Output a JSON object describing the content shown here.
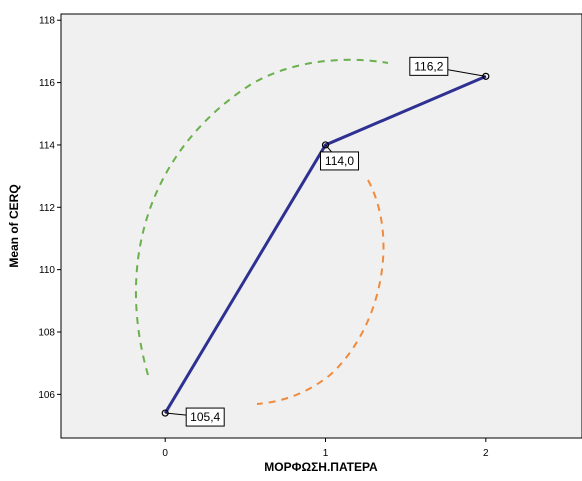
{
  "chart_data": {
    "type": "line",
    "title": "",
    "xlabel": "ΜΟΡΦΩΣΗ.ΠΑΤΕΡΑ",
    "ylabel": "Mean of CERQ",
    "x": [
      0,
      1,
      2
    ],
    "x_tick_labels": [
      "0",
      "1",
      "2"
    ],
    "xlim": [
      -0.65,
      2.6
    ],
    "ylim": [
      104.6,
      118.2
    ],
    "y_ticks": [
      106,
      108,
      110,
      112,
      114,
      116,
      118
    ],
    "series": [
      {
        "values": [
          105.4,
          114.0,
          116.2
        ],
        "color": "#2e3192"
      }
    ],
    "data_labels": [
      "105,4",
      "114,0",
      "116,2"
    ],
    "annotations": [
      {
        "type": "dashed-arc",
        "color": "#6ab04c"
      },
      {
        "type": "dashed-arc",
        "color": "#f08a3c"
      }
    ],
    "grid": false,
    "plot_background": "#f0f0f0"
  }
}
